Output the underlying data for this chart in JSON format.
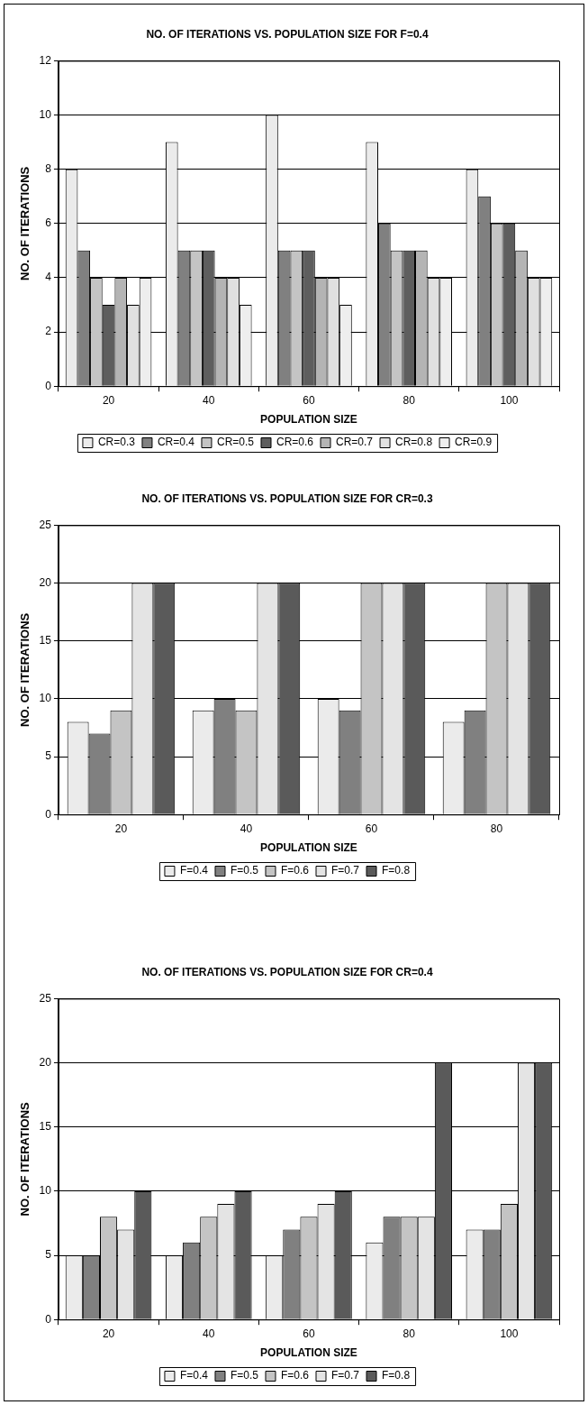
{
  "chart_data": [
    {
      "type": "bar",
      "title": "NO. OF ITERATIONS VS. POPULATION SIZE FOR F=0.4",
      "xlabel": "POPULATION SIZE",
      "ylabel": "NO. OF ITERATIONS",
      "categories": [
        "20",
        "40",
        "60",
        "80",
        "100"
      ],
      "ylim": [
        0,
        12
      ],
      "yticks": [
        0,
        2,
        4,
        6,
        8,
        10,
        12
      ],
      "grid": "y",
      "legend": "bottom",
      "series": [
        {
          "name": "CR=0.3",
          "color": "#ebebeb",
          "values": [
            8,
            9,
            10,
            9,
            8
          ]
        },
        {
          "name": "CR=0.4",
          "color": "#808080",
          "values": [
            5,
            5,
            5,
            6,
            7
          ]
        },
        {
          "name": "CR=0.5",
          "color": "#c4c4c4",
          "values": [
            4,
            5,
            5,
            5,
            6
          ]
        },
        {
          "name": "CR=0.6",
          "color": "#5e5e5e",
          "values": [
            3,
            5,
            5,
            5,
            6
          ]
        },
        {
          "name": "CR=0.7",
          "color": "#b4b4b4",
          "values": [
            4,
            4,
            4,
            5,
            5
          ]
        },
        {
          "name": "CR=0.8",
          "color": "#e0e0e0",
          "values": [
            3,
            4,
            4,
            4,
            4
          ]
        },
        {
          "name": "CR=0.9",
          "color": "#eeeeee",
          "values": [
            4,
            3,
            3,
            4,
            4
          ]
        }
      ]
    },
    {
      "type": "bar",
      "title": "NO. OF ITERATIONS VS. POPULATION SIZE FOR CR=0.3",
      "xlabel": "POPULATION SIZE",
      "ylabel": "NO. OF ITERATIONS",
      "categories": [
        "20",
        "40",
        "60",
        "80"
      ],
      "ylim": [
        0,
        25
      ],
      "yticks": [
        0,
        5,
        10,
        15,
        20,
        25
      ],
      "grid": "y",
      "legend": "bottom",
      "series": [
        {
          "name": "F=0.4",
          "color": "#ebebeb",
          "values": [
            8,
            9,
            10,
            8
          ]
        },
        {
          "name": "F=0.5",
          "color": "#808080",
          "values": [
            7,
            10,
            9,
            9
          ]
        },
        {
          "name": "F=0.6",
          "color": "#c4c4c4",
          "values": [
            9,
            9,
            20,
            20
          ]
        },
        {
          "name": "F=0.7",
          "color": "#e4e4e4",
          "values": [
            20,
            20,
            20,
            20
          ]
        },
        {
          "name": "F=0.8",
          "color": "#5a5a5a",
          "values": [
            20,
            20,
            20,
            20
          ]
        }
      ]
    },
    {
      "type": "bar",
      "title": "NO. OF ITERATIONS VS. POPULATION SIZE FOR CR=0.4",
      "xlabel": "POPULATION SIZE",
      "ylabel": "NO. OF ITERATIONS",
      "categories": [
        "20",
        "40",
        "60",
        "80",
        "100"
      ],
      "ylim": [
        0,
        25
      ],
      "yticks": [
        0,
        5,
        10,
        15,
        20,
        25
      ],
      "grid": "y",
      "legend": "bottom",
      "series": [
        {
          "name": "F=0.4",
          "color": "#ebebeb",
          "values": [
            5,
            5,
            5,
            6,
            7
          ]
        },
        {
          "name": "F=0.5",
          "color": "#808080",
          "values": [
            5,
            6,
            7,
            8,
            7
          ]
        },
        {
          "name": "F=0.6",
          "color": "#c4c4c4",
          "values": [
            8,
            8,
            8,
            8,
            9
          ]
        },
        {
          "name": "F=0.7",
          "color": "#e4e4e4",
          "values": [
            7,
            9,
            9,
            8,
            20
          ]
        },
        {
          "name": "F=0.8",
          "color": "#5a5a5a",
          "values": [
            10,
            10,
            10,
            20,
            20
          ]
        }
      ]
    }
  ]
}
